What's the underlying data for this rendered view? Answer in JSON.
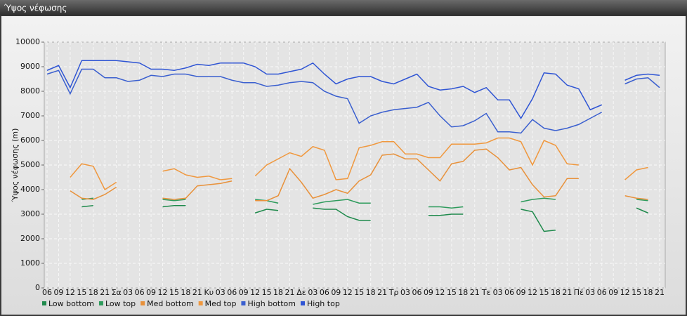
{
  "window_title": "Ύψος νέφωσης",
  "chart_data": {
    "type": "line",
    "y_label": "Ύψος νέφωσης (m)",
    "categories": [
      "06",
      "09",
      "12",
      "15",
      "18",
      "21",
      "Σα",
      "03",
      "06",
      "09",
      "12",
      "15",
      "18",
      "21",
      "Κυ",
      "03",
      "06",
      "09",
      "12",
      "15",
      "18",
      "21",
      "Δε",
      "03",
      "06",
      "09",
      "12",
      "15",
      "18",
      "21",
      "Τρ",
      "03",
      "06",
      "09",
      "12",
      "15",
      "18",
      "21",
      "Τε",
      "03",
      "06",
      "09",
      "12",
      "15",
      "18",
      "21",
      "Πέ",
      "03",
      "06",
      "09",
      "12",
      "15",
      "18",
      "21"
    ],
    "ylim": [
      0,
      10000
    ],
    "yticks": [
      0,
      1000,
      2000,
      3000,
      4000,
      5000,
      6000,
      7000,
      8000,
      9000,
      10000
    ],
    "grid": true,
    "legend": "bottom-left",
    "series": [
      {
        "name": "Low bottom",
        "color": "#1f8a4c",
        "values": [
          null,
          null,
          null,
          3300,
          3350,
          null,
          null,
          null,
          null,
          null,
          3300,
          3350,
          3350,
          null,
          null,
          null,
          null,
          null,
          3050,
          3200,
          3150,
          null,
          null,
          3250,
          3200,
          3200,
          2900,
          2750,
          2750,
          null,
          null,
          null,
          null,
          2950,
          2950,
          3000,
          3000,
          null,
          null,
          null,
          null,
          3200,
          3100,
          2300,
          2350,
          null,
          null,
          null,
          null,
          null,
          null,
          3250,
          3050,
          null
        ]
      },
      {
        "name": "Low top",
        "color": "#2e9b5c",
        "values": [
          null,
          null,
          null,
          3600,
          3650,
          null,
          null,
          null,
          null,
          null,
          3600,
          3550,
          3600,
          null,
          null,
          null,
          null,
          null,
          3600,
          3550,
          3450,
          null,
          null,
          3400,
          3500,
          3550,
          3600,
          3450,
          3450,
          null,
          null,
          null,
          null,
          3300,
          3300,
          3250,
          3300,
          null,
          null,
          null,
          null,
          3500,
          3600,
          3650,
          3600,
          null,
          null,
          null,
          null,
          null,
          null,
          3600,
          3550,
          null
        ]
      },
      {
        "name": "Med bottom",
        "color": "#e8913a",
        "values": [
          null,
          null,
          3950,
          3650,
          3600,
          3800,
          4100,
          null,
          null,
          null,
          3650,
          3600,
          3650,
          4150,
          4200,
          4250,
          4350,
          null,
          3550,
          3550,
          3750,
          4850,
          4300,
          3650,
          3800,
          4000,
          3850,
          4350,
          4600,
          5400,
          5450,
          5250,
          5250,
          4800,
          4350,
          5050,
          5150,
          5600,
          5650,
          5300,
          4800,
          4900,
          4200,
          3700,
          3750,
          4450,
          4450,
          null,
          null,
          null,
          3750,
          3650,
          3600,
          null
        ]
      },
      {
        "name": "Med top",
        "color": "#f0983e",
        "values": [
          null,
          null,
          4500,
          5050,
          4950,
          4000,
          4300,
          null,
          null,
          null,
          4750,
          4850,
          4600,
          4500,
          4550,
          4400,
          4450,
          null,
          4550,
          5000,
          5250,
          5500,
          5350,
          5750,
          5600,
          4400,
          4450,
          5700,
          5800,
          5950,
          5950,
          5450,
          5450,
          5300,
          5300,
          5850,
          5850,
          5850,
          5900,
          6100,
          6100,
          5950,
          5000,
          6000,
          5800,
          5050,
          5000,
          null,
          null,
          null,
          4400,
          4800,
          4900,
          null
        ]
      },
      {
        "name": "High bottom",
        "color": "#3a5fcf",
        "values": [
          8700,
          8850,
          7900,
          8900,
          8900,
          8550,
          8550,
          8400,
          8450,
          8650,
          8600,
          8700,
          8700,
          8600,
          8600,
          8600,
          8450,
          8350,
          8350,
          8200,
          8250,
          8350,
          8400,
          8350,
          8000,
          7800,
          7700,
          6700,
          7000,
          7150,
          7250,
          7300,
          7350,
          7550,
          7000,
          6550,
          6600,
          6800,
          7100,
          6350,
          6350,
          6300,
          6850,
          6500,
          6400,
          6500,
          6650,
          6900,
          7150,
          null,
          8300,
          8500,
          8550,
          8150
        ]
      },
      {
        "name": "High top",
        "color": "#2f55d4",
        "values": [
          8850,
          9050,
          8150,
          9250,
          9250,
          9250,
          9250,
          9200,
          9150,
          8900,
          8900,
          8850,
          8950,
          9100,
          9050,
          9150,
          9150,
          9150,
          9000,
          8700,
          8700,
          8800,
          8900,
          9150,
          8700,
          8300,
          8500,
          8600,
          8600,
          8400,
          8300,
          8500,
          8700,
          8200,
          8050,
          8100,
          8200,
          7950,
          8150,
          7650,
          7650,
          6900,
          7700,
          8750,
          8700,
          8250,
          8100,
          7250,
          7450,
          null,
          8450,
          8650,
          8700,
          8650
        ]
      }
    ]
  }
}
